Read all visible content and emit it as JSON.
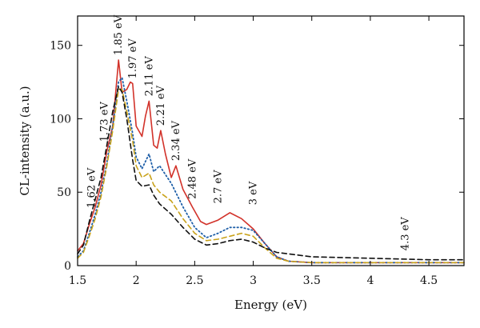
{
  "chart_data": {
    "type": "line",
    "title": "",
    "xlabel": "Energy (eV)",
    "ylabel": "CL-intensity (a.u.)",
    "xlim": [
      1.5,
      4.8
    ],
    "ylim": [
      0,
      170
    ],
    "grid": false,
    "legend": "none",
    "x_ticks": [
      {
        "value": 1.5,
        "label": "1.5"
      },
      {
        "value": 2.0,
        "label": "2"
      },
      {
        "value": 2.5,
        "label": "2.5"
      },
      {
        "value": 3.0,
        "label": "3"
      },
      {
        "value": 3.5,
        "label": "3.5"
      },
      {
        "value": 4.0,
        "label": "4"
      },
      {
        "value": 4.5,
        "label": "4.5"
      }
    ],
    "y_ticks": [
      {
        "value": 0,
        "label": "0"
      },
      {
        "value": 50,
        "label": "50"
      },
      {
        "value": 100,
        "label": "100"
      },
      {
        "value": 150,
        "label": "150"
      }
    ],
    "annotations": [
      {
        "text": "1.62 eV",
        "x": 1.62,
        "y": 36
      },
      {
        "text": "1.73 eV",
        "x": 1.73,
        "y": 81
      },
      {
        "text": "1.85 eV",
        "x": 1.85,
        "y": 140
      },
      {
        "text": "1.97 eV",
        "x": 1.97,
        "y": 124
      },
      {
        "text": "2.11 eV",
        "x": 2.11,
        "y": 112
      },
      {
        "text": "2.21 eV",
        "x": 2.21,
        "y": 92
      },
      {
        "text": "2.34 eV",
        "x": 2.34,
        "y": 68
      },
      {
        "text": "2.48 eV",
        "x": 2.48,
        "y": 42
      },
      {
        "text": "2.7 eV",
        "x": 2.7,
        "y": 39
      },
      {
        "text": "3 eV",
        "x": 3.0,
        "y": 38
      },
      {
        "text": "4.3 eV",
        "x": 4.3,
        "y": 7
      }
    ],
    "series": [
      {
        "color": "#d2322a",
        "style": "solid",
        "x": [
          1.5,
          1.55,
          1.6,
          1.65,
          1.7,
          1.75,
          1.8,
          1.85,
          1.88,
          1.92,
          1.95,
          1.97,
          2.0,
          2.05,
          2.08,
          2.11,
          2.15,
          2.18,
          2.21,
          2.25,
          2.3,
          2.34,
          2.4,
          2.48,
          2.55,
          2.6,
          2.7,
          2.8,
          2.9,
          3.0,
          3.1,
          3.2,
          3.3,
          3.5,
          4.0,
          4.5,
          4.8
        ],
        "y": [
          10,
          15,
          28,
          40,
          55,
          78,
          95,
          140,
          118,
          120,
          125,
          124,
          95,
          88,
          102,
          112,
          82,
          80,
          92,
          76,
          60,
          68,
          52,
          40,
          30,
          28,
          31,
          36,
          32,
          25,
          15,
          6,
          3,
          2,
          2,
          2,
          2
        ]
      },
      {
        "color": "#1f5fa8",
        "style": "dotted",
        "x": [
          1.5,
          1.55,
          1.6,
          1.65,
          1.7,
          1.75,
          1.8,
          1.85,
          1.88,
          1.92,
          1.97,
          2.0,
          2.05,
          2.11,
          2.15,
          2.2,
          2.3,
          2.4,
          2.5,
          2.6,
          2.7,
          2.8,
          2.9,
          3.0,
          3.1,
          3.2,
          3.3,
          3.5,
          4.0,
          4.5,
          4.8
        ],
        "y": [
          6,
          10,
          22,
          35,
          50,
          70,
          95,
          125,
          128,
          112,
          90,
          74,
          66,
          76,
          64,
          68,
          56,
          40,
          26,
          19,
          22,
          26,
          26,
          24,
          15,
          6,
          3,
          2,
          2,
          2,
          2
        ]
      },
      {
        "color": "#c9a21a",
        "style": "dashed",
        "x": [
          1.5,
          1.55,
          1.6,
          1.65,
          1.7,
          1.75,
          1.8,
          1.85,
          1.88,
          1.92,
          1.97,
          2.0,
          2.05,
          2.11,
          2.15,
          2.2,
          2.3,
          2.4,
          2.5,
          2.6,
          2.7,
          2.8,
          2.9,
          3.0,
          3.1,
          3.2,
          3.3,
          3.5,
          4.0,
          4.5,
          4.8
        ],
        "y": [
          5,
          9,
          20,
          32,
          47,
          68,
          92,
          120,
          120,
          105,
          85,
          68,
          60,
          63,
          55,
          50,
          44,
          32,
          22,
          17,
          18,
          20,
          22,
          20,
          12,
          5,
          3,
          2,
          2,
          2,
          2
        ]
      },
      {
        "color": "#111111",
        "style": "dashed",
        "x": [
          1.5,
          1.55,
          1.6,
          1.65,
          1.7,
          1.75,
          1.8,
          1.85,
          1.88,
          1.92,
          1.97,
          2.0,
          2.05,
          2.11,
          2.15,
          2.2,
          2.3,
          2.4,
          2.5,
          2.6,
          2.7,
          2.8,
          2.9,
          3.0,
          3.1,
          3.2,
          3.3,
          3.5,
          4.0,
          4.5,
          4.8
        ],
        "y": [
          8,
          14,
          30,
          45,
          60,
          82,
          105,
          122,
          118,
          100,
          72,
          58,
          54,
          55,
          48,
          42,
          35,
          26,
          18,
          14,
          15,
          17,
          18,
          16,
          12,
          9,
          8,
          6,
          5,
          4,
          4
        ]
      }
    ]
  }
}
